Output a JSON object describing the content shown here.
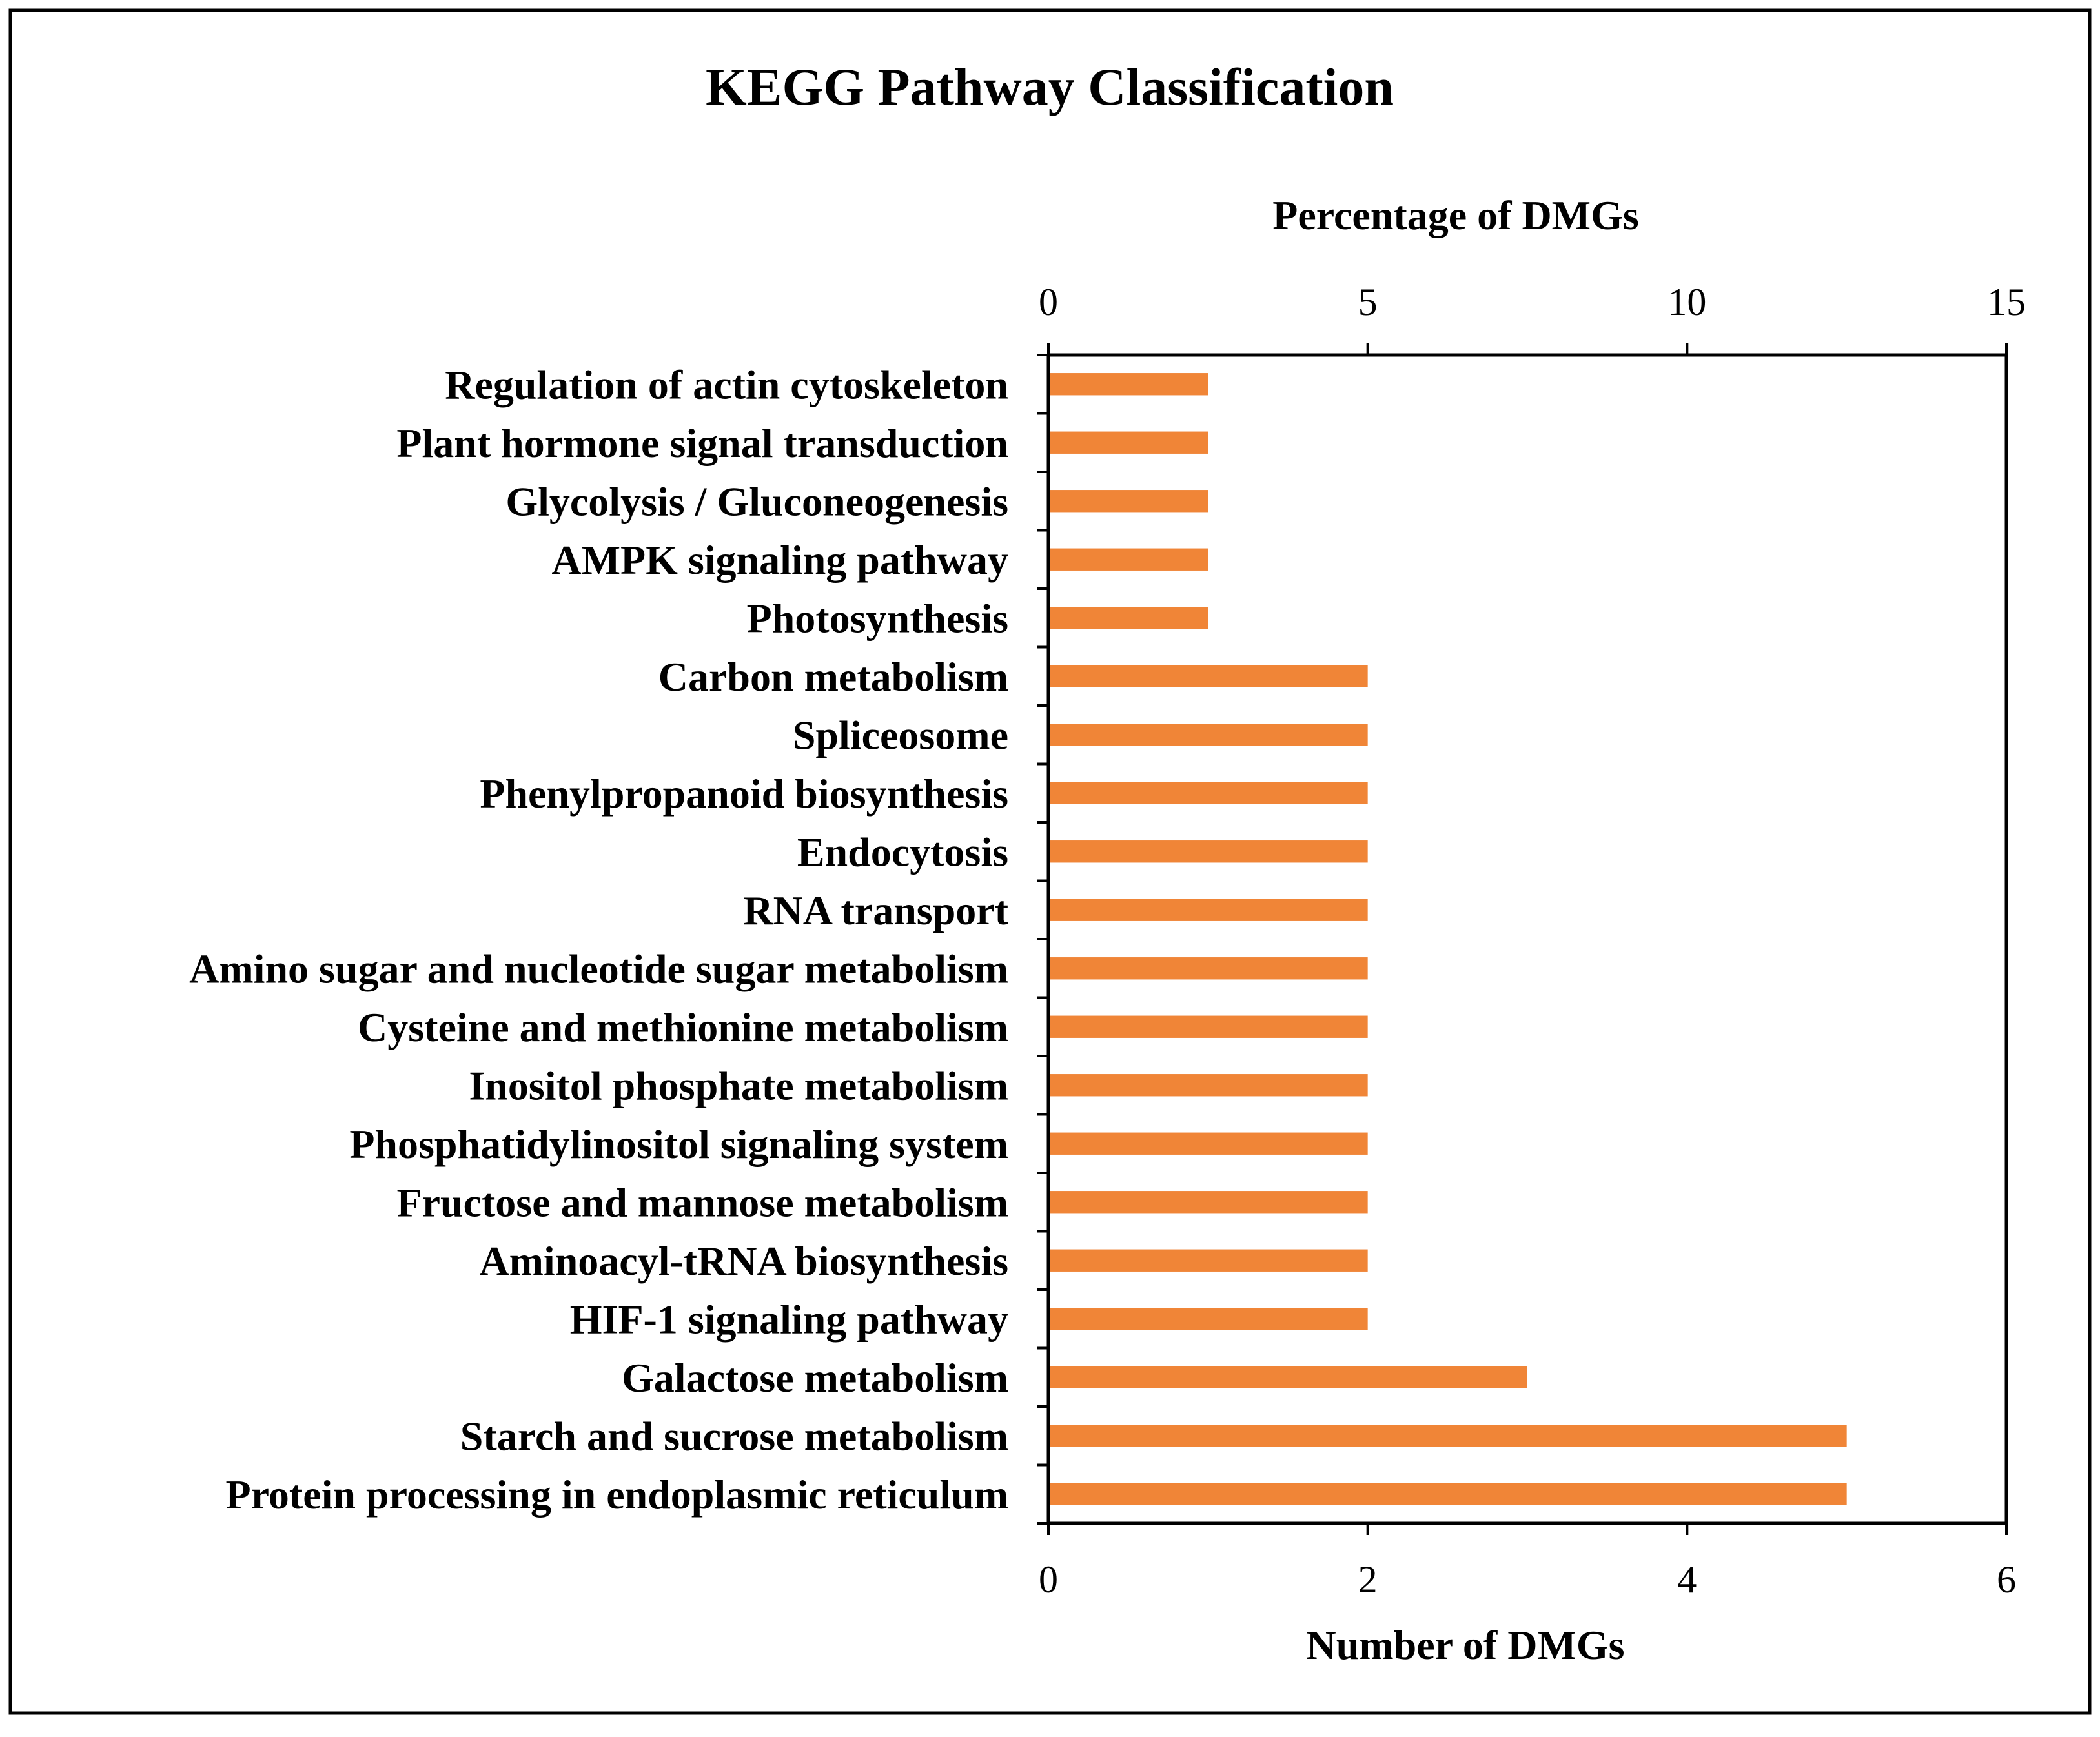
{
  "chart_data": {
    "type": "bar",
    "orientation": "horizontal",
    "title": "KEGG Pathway Classification",
    "xlabel": "Number of DMGs",
    "x2label": "Percentage of DMGs",
    "xlim": [
      0,
      6
    ],
    "x2lim": [
      0,
      15
    ],
    "xticks": [
      0,
      2,
      4,
      6
    ],
    "x2ticks": [
      0,
      5,
      10,
      15
    ],
    "bar_color": "#f08537",
    "categories": [
      "Regulation of actin cytoskeleton",
      "Plant hormone signal transduction",
      "Glycolysis / Gluconeogenesis",
      "AMPK signaling pathway",
      "Photosynthesis",
      "Carbon metabolism",
      "Spliceosome",
      "Phenylpropanoid biosynthesis",
      "Endocytosis",
      "RNA transport",
      "Amino sugar and nucleotide sugar metabolism",
      "Cysteine and methionine metabolism",
      "Inositol phosphate metabolism",
      "Phosphatidylinositol signaling system",
      "Fructose and mannose metabolism",
      "Aminoacyl-tRNA biosynthesis",
      "HIF-1 signaling pathway",
      "Galactose metabolism",
      "Starch and sucrose metabolism",
      "Protein processing in endoplasmic reticulum"
    ],
    "values": [
      1,
      1,
      1,
      1,
      1,
      2,
      2,
      2,
      2,
      2,
      2,
      2,
      2,
      2,
      2,
      2,
      2,
      3,
      5,
      5
    ]
  }
}
